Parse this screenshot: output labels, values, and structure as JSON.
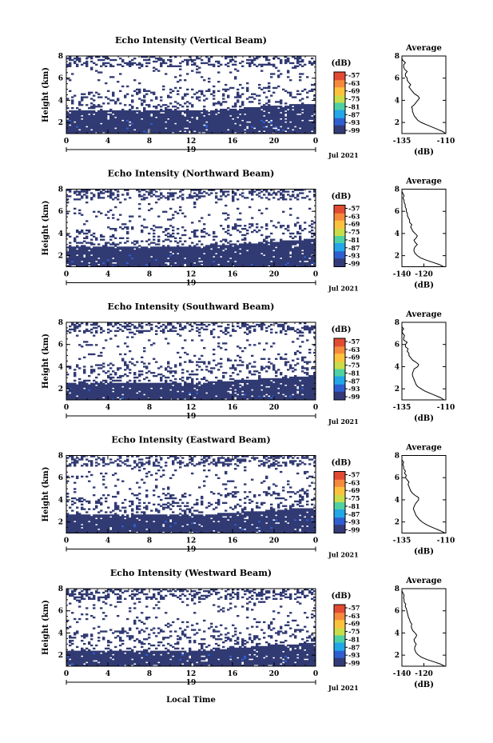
{
  "figure": {
    "bottom_xlabel": "Local Time",
    "date_label": "Jul 2021",
    "day_label": "19",
    "colorbar_unit": "(dB)",
    "colorbar_ticks": [
      "-57",
      "-63",
      "-69",
      "-75",
      "-81",
      "-87",
      "-93",
      "-99"
    ],
    "colorbar_colors": [
      "#e34a33",
      "#f58a3c",
      "#fdc23c",
      "#c9dd4a",
      "#4fd1a3",
      "#22a7e8",
      "#2e5fd0",
      "#333a78"
    ],
    "fill_color": "#313a73"
  },
  "chart_data": [
    {
      "type": "heatmap",
      "title": "Echo Intensity (Vertical Beam)",
      "ylabel": "Height (km)",
      "xlim": [
        0,
        24
      ],
      "ylim": [
        1,
        8
      ],
      "x_ticks": [
        "0",
        "4",
        "8",
        "12",
        "16",
        "20",
        "0"
      ],
      "y_ticks": [
        "2",
        "4",
        "6",
        "8"
      ],
      "echo_profile": {
        "top_solid_km": 3.0,
        "patchy_mid_km": 4.5,
        "sparse_high_km": 8.0
      },
      "average_profile": {
        "title": "Average",
        "xlabel": "(dB)",
        "xlim": [
          -135,
          -110
        ],
        "x_ticks": [
          "-135",
          "-110"
        ],
        "y_ticks": [
          "2",
          "4",
          "6",
          "8"
        ],
        "height": [
          1.0,
          1.2,
          1.4,
          1.6,
          1.8,
          2.0,
          2.2,
          2.4,
          2.6,
          2.8,
          3.0,
          3.2,
          3.4,
          3.6,
          3.8,
          4.0,
          4.2,
          4.4,
          4.6,
          4.8,
          5.0,
          5.2,
          5.4,
          5.6,
          5.8,
          6.0,
          6.2,
          6.4,
          6.6,
          6.8,
          7.0,
          7.2,
          7.4,
          7.6,
          7.8,
          8.0
        ],
        "value": [
          -110,
          -112,
          -115,
          -118,
          -121,
          -124,
          -126,
          -127,
          -128,
          -128.5,
          -129,
          -129,
          -129.5,
          -128,
          -127,
          -126,
          -125,
          -126,
          -128,
          -129,
          -130,
          -131,
          -130,
          -131,
          -132,
          -132,
          -133,
          -133,
          -132,
          -133.5,
          -134,
          -134,
          -133,
          -134.5,
          -135,
          -135
        ]
      }
    },
    {
      "type": "heatmap",
      "title": "Echo Intensity (Northward Beam)",
      "ylabel": "Height (km)",
      "xlim": [
        0,
        24
      ],
      "ylim": [
        1,
        8
      ],
      "x_ticks": [
        "0",
        "4",
        "8",
        "12",
        "16",
        "20",
        "0"
      ],
      "y_ticks": [
        "2",
        "4",
        "6",
        "8"
      ],
      "echo_profile": {
        "top_solid_km": 2.8,
        "patchy_mid_km": 4.2,
        "sparse_high_km": 8.0
      },
      "average_profile": {
        "title": "Average",
        "xlabel": "(dB)",
        "xlim": [
          -140,
          -100
        ],
        "x_ticks": [
          "-140",
          "-120"
        ],
        "y_ticks": [
          "2",
          "4",
          "6",
          "8"
        ],
        "height": [
          1.0,
          1.2,
          1.4,
          1.6,
          1.8,
          2.0,
          2.2,
          2.4,
          2.6,
          2.8,
          3.0,
          3.2,
          3.4,
          3.6,
          3.8,
          4.0,
          4.2,
          4.4,
          4.6,
          4.8,
          5.0,
          5.2,
          5.4,
          5.6,
          5.8,
          6.0,
          6.2,
          6.4,
          6.6,
          6.8,
          7.0,
          7.2,
          7.4,
          7.6,
          7.8,
          8.0
        ],
        "value": [
          -102,
          -106,
          -112,
          -118,
          -123,
          -126,
          -128,
          -129,
          -129,
          -128,
          -126,
          -128,
          -129,
          -127,
          -126,
          -128,
          -130,
          -131,
          -132,
          -131,
          -133,
          -133,
          -134,
          -135,
          -135,
          -136,
          -136,
          -137,
          -137,
          -138,
          -138,
          -139,
          -138,
          -139,
          -140,
          -140
        ]
      }
    },
    {
      "type": "heatmap",
      "title": "Echo Intensity (Southward Beam)",
      "ylabel": "Height (km)",
      "xlim": [
        0,
        24
      ],
      "ylim": [
        1,
        8
      ],
      "x_ticks": [
        "0",
        "4",
        "8",
        "12",
        "16",
        "20",
        "0"
      ],
      "y_ticks": [
        "2",
        "4",
        "6",
        "8"
      ],
      "echo_profile": {
        "top_solid_km": 2.5,
        "patchy_mid_km": 4.0,
        "sparse_high_km": 8.0
      },
      "average_profile": {
        "title": "Average",
        "xlabel": "(dB)",
        "xlim": [
          -135,
          -110
        ],
        "x_ticks": [
          "-135",
          "-110"
        ],
        "y_ticks": [
          "2",
          "4",
          "6",
          "8"
        ],
        "height": [
          1.0,
          1.2,
          1.4,
          1.6,
          1.8,
          2.0,
          2.2,
          2.4,
          2.6,
          2.8,
          3.0,
          3.2,
          3.4,
          3.6,
          3.8,
          4.0,
          4.2,
          4.4,
          4.6,
          4.8,
          5.0,
          5.2,
          5.4,
          5.6,
          5.8,
          6.0,
          6.2,
          6.4,
          6.6,
          6.8,
          7.0,
          7.2,
          7.4,
          7.6,
          7.8,
          8.0
        ],
        "value": [
          -111,
          -113,
          -116,
          -119,
          -122,
          -124,
          -126,
          -127,
          -127.5,
          -128,
          -128.5,
          -129,
          -129,
          -128.5,
          -128,
          -126,
          -125.5,
          -127,
          -129,
          -130,
          -131,
          -131,
          -132,
          -131.5,
          -133,
          -133,
          -132,
          -134,
          -134,
          -133.5,
          -134.5,
          -135,
          -134,
          -135,
          -135,
          -135
        ]
      }
    },
    {
      "type": "heatmap",
      "title": "Echo Intensity (Eastward Beam)",
      "ylabel": "Height (km)",
      "xlim": [
        0,
        24
      ],
      "ylim": [
        1,
        8
      ],
      "x_ticks": [
        "0",
        "4",
        "8",
        "12",
        "16",
        "20",
        "0"
      ],
      "y_ticks": [
        "2",
        "4",
        "6",
        "8"
      ],
      "echo_profile": {
        "top_solid_km": 2.6,
        "patchy_mid_km": 4.1,
        "sparse_high_km": 8.0
      },
      "average_profile": {
        "title": "Average",
        "xlabel": "(dB)",
        "xlim": [
          -135,
          -110
        ],
        "x_ticks": [
          "-135",
          "-110"
        ],
        "y_ticks": [
          "2",
          "4",
          "6",
          "8"
        ],
        "height": [
          1.0,
          1.2,
          1.4,
          1.6,
          1.8,
          2.0,
          2.2,
          2.4,
          2.6,
          2.8,
          3.0,
          3.2,
          3.4,
          3.6,
          3.8,
          4.0,
          4.2,
          4.4,
          4.6,
          4.8,
          5.0,
          5.2,
          5.4,
          5.6,
          5.8,
          6.0,
          6.2,
          6.4,
          6.6,
          6.8,
          7.0,
          7.2,
          7.4,
          7.6,
          7.8,
          8.0
        ],
        "value": [
          -110.5,
          -113,
          -116,
          -119,
          -121.5,
          -123.5,
          -125,
          -126,
          -127,
          -127.5,
          -128,
          -128.5,
          -128,
          -127.5,
          -126.5,
          -125.5,
          -125.5,
          -127.5,
          -129,
          -130,
          -130.5,
          -131,
          -131.5,
          -131,
          -132,
          -133,
          -132.5,
          -133.5,
          -133,
          -134,
          -134,
          -134.5,
          -134,
          -135,
          -135,
          -135
        ]
      }
    },
    {
      "type": "heatmap",
      "title": "Echo Intensity (Westward Beam)",
      "ylabel": "Height (km)",
      "xlim": [
        0,
        24
      ],
      "ylim": [
        1,
        8
      ],
      "x_ticks": [
        "0",
        "4",
        "8",
        "12",
        "16",
        "20",
        "0"
      ],
      "y_ticks": [
        "2",
        "4",
        "6",
        "8"
      ],
      "echo_profile": {
        "top_solid_km": 2.4,
        "patchy_mid_km": 3.9,
        "sparse_high_km": 8.0
      },
      "average_profile": {
        "title": "Average",
        "xlabel": "(dB)",
        "xlim": [
          -140,
          -100
        ],
        "x_ticks": [
          "-140",
          "-120"
        ],
        "y_ticks": [
          "2",
          "4",
          "6",
          "8"
        ],
        "height": [
          1.0,
          1.2,
          1.4,
          1.6,
          1.8,
          2.0,
          2.2,
          2.4,
          2.6,
          2.8,
          3.0,
          3.2,
          3.4,
          3.6,
          3.8,
          4.0,
          4.2,
          4.4,
          4.6,
          4.8,
          5.0,
          5.2,
          5.4,
          5.6,
          5.8,
          6.0,
          6.2,
          6.4,
          6.6,
          6.8,
          7.0,
          7.2,
          7.4,
          7.6,
          7.8,
          8.0
        ],
        "value": [
          -101,
          -105,
          -111,
          -117,
          -122,
          -125,
          -127,
          -128,
          -128.5,
          -128,
          -127,
          -128.5,
          -129,
          -127.5,
          -126.5,
          -128,
          -130,
          -131,
          -131.5,
          -131,
          -132.5,
          -133,
          -134,
          -134.5,
          -135,
          -135.5,
          -136,
          -137,
          -136.5,
          -138,
          -138,
          -138.5,
          -138,
          -139,
          -140,
          -140
        ]
      }
    }
  ]
}
